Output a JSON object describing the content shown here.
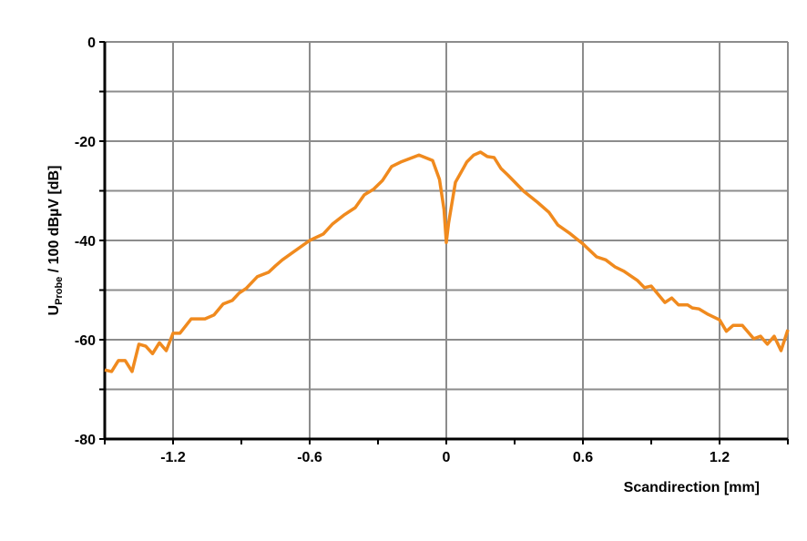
{
  "chart_data": {
    "type": "line",
    "title": "",
    "xlabel": "Scandirection [mm]",
    "ylabel": {
      "main": "U",
      "subscript": "Probe",
      "rest": " / 100 dBµV [dB]"
    },
    "xlim": [
      -1.5,
      1.5
    ],
    "ylim": [
      -80,
      0
    ],
    "xticks": [
      -1.2,
      -0.6,
      0,
      0.6,
      1.2
    ],
    "xtick_labels": [
      "-1.2",
      "-0.6",
      "0",
      "0.6",
      "1.2"
    ],
    "yticks": [
      0,
      -20,
      -40,
      -60,
      -80
    ],
    "ytick_labels": [
      "0",
      "-20",
      "-40",
      "-60",
      "-80"
    ],
    "grid": true,
    "series_color": "#f08a1e",
    "series": [
      {
        "x": [
          -1.5,
          -1.47,
          -1.44,
          -1.41,
          -1.38,
          -1.35,
          -1.32,
          -1.29,
          -1.26,
          -1.23,
          -1.2,
          -1.17,
          -1.12,
          -1.06,
          -1.02,
          -0.98,
          -0.94,
          -0.91,
          -0.88,
          -0.83,
          -0.78,
          -0.75,
          -0.72,
          -0.68,
          -0.6,
          -0.54,
          -0.5,
          -0.45,
          -0.4,
          -0.36,
          -0.32,
          -0.28,
          -0.24,
          -0.2,
          -0.12,
          -0.06,
          -0.03,
          -0.01,
          0,
          0.01,
          0.04,
          0.09,
          0.12,
          0.15,
          0.18,
          0.21,
          0.24,
          0.27,
          0.34,
          0.4,
          0.45,
          0.49,
          0.54,
          0.6,
          0.66,
          0.7,
          0.74,
          0.78,
          0.84,
          0.87,
          0.9,
          0.96,
          0.99,
          1.02,
          1.06,
          1.08,
          1.11,
          1.15,
          1.2,
          1.23,
          1.26,
          1.3,
          1.35,
          1.38,
          1.41,
          1.44,
          1.47,
          1.5
        ],
        "y": [
          -66.1,
          -66.4,
          -64.2,
          -64.2,
          -66.4,
          -60.9,
          -61.3,
          -62.8,
          -60.6,
          -62.2,
          -58.7,
          -58.7,
          -55.8,
          -55.8,
          -55.0,
          -52.8,
          -52.1,
          -50.6,
          -49.7,
          -47.3,
          -46.4,
          -45.1,
          -43.9,
          -42.6,
          -40.0,
          -38.7,
          -36.7,
          -34.9,
          -33.4,
          -30.8,
          -29.7,
          -27.9,
          -25.1,
          -24.2,
          -22.8,
          -23.9,
          -27.7,
          -33.8,
          -40.4,
          -36.5,
          -28.3,
          -24.2,
          -22.8,
          -22.2,
          -23.1,
          -23.3,
          -25.5,
          -26.8,
          -30.1,
          -32.3,
          -34.3,
          -36.9,
          -38.5,
          -40.7,
          -43.3,
          -43.9,
          -45.3,
          -46.2,
          -48.1,
          -49.5,
          -49.2,
          -52.5,
          -51.6,
          -53.0,
          -53.0,
          -53.6,
          -53.8,
          -54.9,
          -56.0,
          -58.3,
          -57.1,
          -57.1,
          -59.8,
          -59.3,
          -60.9,
          -59.3,
          -62.2,
          -58.0
        ]
      }
    ]
  }
}
